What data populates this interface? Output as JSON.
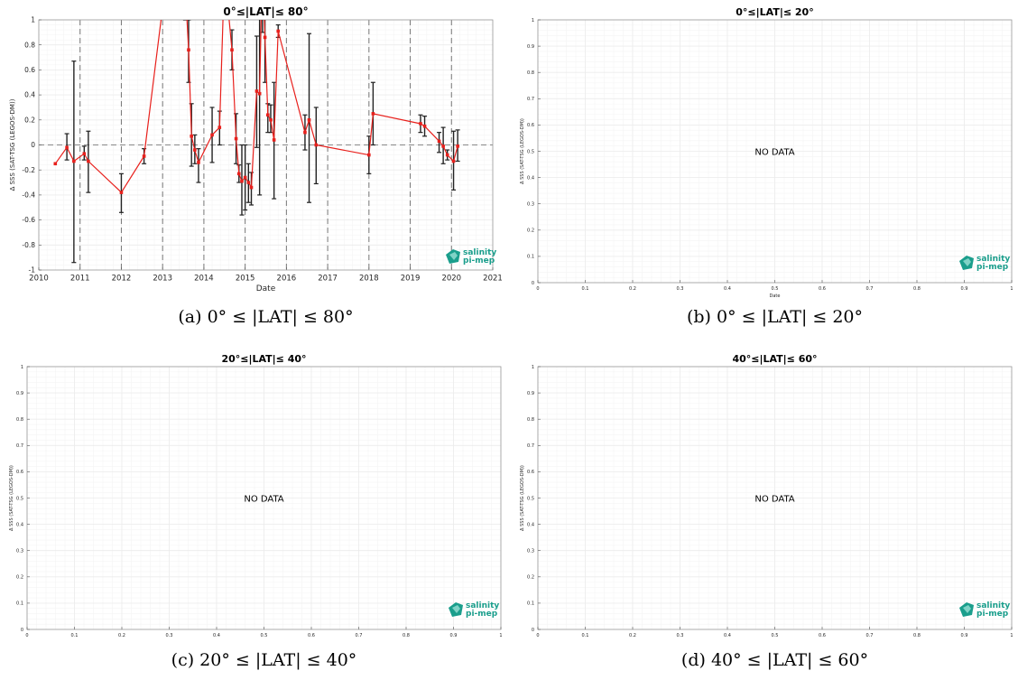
{
  "colors": {
    "series": "#e8201c",
    "errorbar": "#222222",
    "zero_line": "#888888",
    "year_line": "#777777",
    "grid": "#ececec",
    "logo": "#1a9e8c"
  },
  "logo": {
    "line1": "salinity",
    "line2": "pi-mep",
    "icon": "salinity-pi-mep-logo-icon"
  },
  "chart_data": [
    {
      "type": "line",
      "title": "0°≤|LAT|≤ 80°",
      "caption": "(a) 0° ≤ |LAT| ≤ 80°",
      "xlabel": "Date",
      "ylabel": "Δ SSS (SAT-TSG (LEGOS-DM))",
      "xlim": [
        2010,
        2021
      ],
      "ylim": [
        -1,
        1
      ],
      "x_ticks": [
        "2010",
        "2011",
        "2012",
        "2013",
        "2014",
        "2015",
        "2016",
        "2017",
        "2018",
        "2019",
        "2020",
        "2021"
      ],
      "y_ticks": [
        "-1",
        "-0.8",
        "-0.6",
        "-0.4",
        "-0.2",
        "0",
        "0.2",
        "0.4",
        "0.6",
        "0.8",
        "1"
      ],
      "year_lines": [
        2011,
        2012,
        2013,
        2014,
        2015,
        2016,
        2017,
        2018,
        2019,
        2020
      ],
      "grid": true,
      "series": [
        {
          "points": [
            {
              "x": 2010.4,
              "y": -0.15
            },
            {
              "x": 2010.68,
              "y": -0.02,
              "lo": -0.12,
              "hi": 0.09
            },
            {
              "x": 2010.85,
              "y": -0.13,
              "lo": -0.94,
              "hi": 0.67
            },
            {
              "x": 2011.1,
              "y": -0.07,
              "lo": -0.12,
              "hi": -0.01
            },
            {
              "x": 2011.2,
              "y": -0.13,
              "lo": -0.38,
              "hi": 0.11
            },
            {
              "x": 2012.0,
              "y": -0.38,
              "lo": -0.54,
              "hi": -0.23
            },
            {
              "x": 2012.55,
              "y": -0.09,
              "lo": -0.15,
              "hi": -0.03
            },
            {
              "x": 2013.0,
              "y": 1.1
            },
            {
              "x": 2013.55,
              "y": 1.25,
              "lo": 1.0,
              "hi": 1.4
            },
            {
              "x": 2013.63,
              "y": 0.76,
              "lo": 0.5,
              "hi": 1.0
            },
            {
              "x": 2013.7,
              "y": 0.07,
              "lo": -0.17,
              "hi": 0.33
            },
            {
              "x": 2013.78,
              "y": -0.04,
              "lo": -0.15,
              "hi": 0.08
            },
            {
              "x": 2013.87,
              "y": -0.14,
              "lo": -0.3,
              "hi": -0.03
            },
            {
              "x": 2014.2,
              "y": 0.08,
              "lo": -0.14,
              "hi": 0.3
            },
            {
              "x": 2014.38,
              "y": 0.14,
              "lo": 0.0,
              "hi": 0.27
            },
            {
              "x": 2014.5,
              "y": 1.4
            },
            {
              "x": 2014.68,
              "y": 0.76,
              "lo": 0.6,
              "hi": 0.92
            },
            {
              "x": 2014.78,
              "y": 0.05,
              "lo": -0.15,
              "hi": 0.25
            },
            {
              "x": 2014.85,
              "y": -0.23,
              "lo": -0.3,
              "hi": -0.16
            },
            {
              "x": 2014.92,
              "y": -0.29,
              "lo": -0.56,
              "hi": 0.0
            },
            {
              "x": 2015.0,
              "y": -0.26,
              "lo": -0.52,
              "hi": 0.0
            },
            {
              "x": 2015.08,
              "y": -0.3,
              "lo": -0.46,
              "hi": -0.15
            },
            {
              "x": 2015.15,
              "y": -0.34,
              "lo": -0.48,
              "hi": -0.22
            },
            {
              "x": 2015.28,
              "y": 0.43,
              "lo": -0.02,
              "hi": 0.87
            },
            {
              "x": 2015.35,
              "y": 0.41,
              "lo": -0.4,
              "hi": 1.2
            },
            {
              "x": 2015.42,
              "y": 1.5,
              "lo": 0.9,
              "hi": 2.0
            },
            {
              "x": 2015.48,
              "y": 0.86,
              "lo": 0.5,
              "hi": 1.2
            },
            {
              "x": 2015.55,
              "y": 0.24,
              "lo": 0.1,
              "hi": 0.33
            },
            {
              "x": 2015.62,
              "y": 0.2,
              "lo": 0.1,
              "hi": 0.32
            },
            {
              "x": 2015.7,
              "y": 0.04,
              "lo": -0.43,
              "hi": 0.5
            },
            {
              "x": 2015.8,
              "y": 0.91,
              "lo": 0.86,
              "hi": 0.96
            },
            {
              "x": 2016.45,
              "y": 0.1,
              "lo": -0.04,
              "hi": 0.24
            },
            {
              "x": 2016.55,
              "y": 0.2,
              "lo": -0.46,
              "hi": 0.89
            },
            {
              "x": 2016.72,
              "y": 0.0,
              "lo": -0.31,
              "hi": 0.3
            },
            {
              "x": 2018.0,
              "y": -0.08,
              "lo": -0.23,
              "hi": 0.07
            },
            {
              "x": 2018.1,
              "y": 0.25,
              "lo": 0.0,
              "hi": 0.5
            },
            {
              "x": 2019.25,
              "y": 0.17,
              "lo": 0.1,
              "hi": 0.24
            },
            {
              "x": 2019.35,
              "y": 0.15,
              "lo": 0.07,
              "hi": 0.23
            },
            {
              "x": 2019.7,
              "y": 0.03,
              "lo": -0.06,
              "hi": 0.1
            },
            {
              "x": 2019.8,
              "y": -0.01,
              "lo": -0.15,
              "hi": 0.14
            },
            {
              "x": 2019.9,
              "y": -0.08,
              "lo": -0.12,
              "hi": -0.04
            },
            {
              "x": 2020.05,
              "y": -0.13,
              "lo": -0.36,
              "hi": 0.11
            },
            {
              "x": 2020.15,
              "y": -0.01,
              "lo": -0.13,
              "hi": 0.12
            }
          ]
        }
      ]
    },
    {
      "type": "line",
      "title": "0°≤|LAT|≤ 20°",
      "caption": "(b) 0° ≤ |LAT| ≤ 20°",
      "xlabel": "Date",
      "ylabel": "Δ SSS (SAT-TSG (LEGOS-DM))",
      "xlim": [
        0,
        1
      ],
      "ylim": [
        0,
        1
      ],
      "x_ticks": [
        "0",
        "0.1",
        "0.2",
        "0.3",
        "0.4",
        "0.5",
        "0.6",
        "0.7",
        "0.8",
        "0.9",
        "1"
      ],
      "y_ticks": [
        "0",
        "0.1",
        "0.2",
        "0.3",
        "0.4",
        "0.5",
        "0.6",
        "0.7",
        "0.8",
        "0.9",
        "1"
      ],
      "grid": true,
      "message": "NO DATA",
      "series": []
    },
    {
      "type": "line",
      "title": "20°≤|LAT|≤ 40°",
      "caption": "(c) 20° ≤ |LAT| ≤ 40°",
      "xlabel": "",
      "ylabel": "Δ SSS (SAT-TSG (LEGOS-DM))",
      "xlim": [
        0,
        1
      ],
      "ylim": [
        0,
        1
      ],
      "x_ticks": [
        "0",
        "0.1",
        "0.2",
        "0.3",
        "0.4",
        "0.5",
        "0.6",
        "0.7",
        "0.8",
        "0.9",
        "1"
      ],
      "y_ticks": [
        "0",
        "0.1",
        "0.2",
        "0.3",
        "0.4",
        "0.5",
        "0.6",
        "0.7",
        "0.8",
        "0.9",
        "1"
      ],
      "grid": true,
      "message": "NO DATA",
      "series": []
    },
    {
      "type": "line",
      "title": "40°≤|LAT|≤ 60°",
      "caption": "(d) 40° ≤ |LAT| ≤ 60°",
      "xlabel": "",
      "ylabel": "Δ SSS (SAT-TSG (LEGOS-DM))",
      "xlim": [
        0,
        1
      ],
      "ylim": [
        0,
        1
      ],
      "x_ticks": [
        "0",
        "0.1",
        "0.2",
        "0.3",
        "0.4",
        "0.5",
        "0.6",
        "0.7",
        "0.8",
        "0.9",
        "1"
      ],
      "y_ticks": [
        "0",
        "0.1",
        "0.2",
        "0.3",
        "0.4",
        "0.5",
        "0.6",
        "0.7",
        "0.8",
        "0.9",
        "1"
      ],
      "grid": true,
      "message": "NO DATA",
      "series": []
    }
  ]
}
